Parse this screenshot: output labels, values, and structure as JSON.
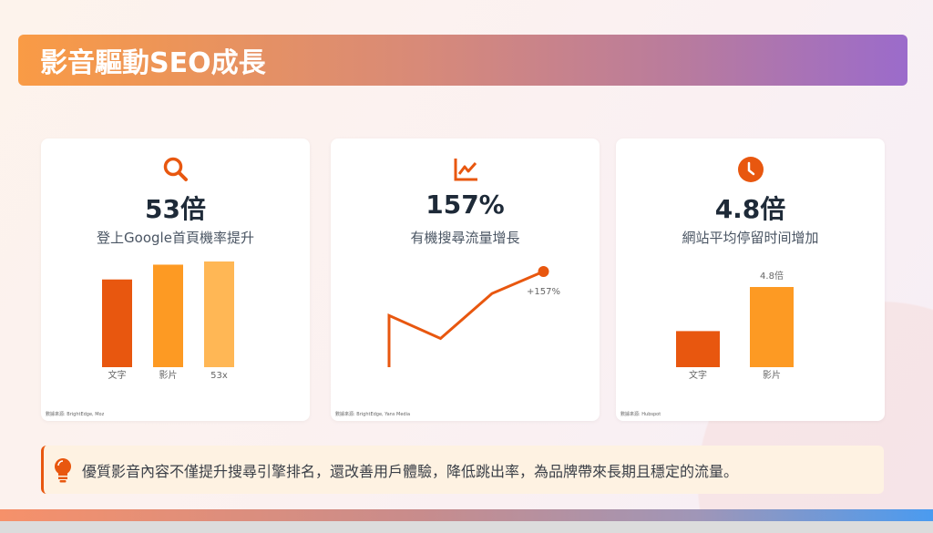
{
  "title": "影音驅動SEO成長",
  "colors": {
    "accent": "#e8570f",
    "orange": "#fd9a23",
    "light_orange": "#ffb755",
    "text": "#1e2a38"
  },
  "cards": [
    {
      "icon": "search-icon",
      "stat": "53倍",
      "desc": "登上Google首頁機率提升",
      "source": "數據來源: BrightEdge, Moz"
    },
    {
      "icon": "line-chart-icon",
      "stat": "157%",
      "desc": "有機搜尋流量增長",
      "source": "數據來源: BrightEdge, Yans Media"
    },
    {
      "icon": "clock-icon",
      "stat": "4.8倍",
      "desc": "網站平均停留时间增加",
      "source": "數據來源: Hubspot"
    }
  ],
  "chart_data": [
    {
      "type": "bar",
      "categories": [
        "文字",
        "影片",
        "53x"
      ],
      "values": [
        83,
        97,
        100
      ],
      "colors": [
        "#e8570f",
        "#fd9a23",
        "#ffb755"
      ]
    },
    {
      "type": "line",
      "values": [
        0,
        54,
        30,
        77,
        100
      ],
      "annotation": "+157%"
    },
    {
      "type": "bar",
      "categories": [
        "文字",
        "影片"
      ],
      "values": [
        45,
        100
      ],
      "data_labels": [
        "",
        "4.8倍"
      ],
      "colors": [
        "#e8570f",
        "#fd9a23"
      ]
    }
  ],
  "callout": {
    "icon": "lightbulb-icon",
    "text": "優質影音內容不僅提升搜尋引擎排名，還改善用戶體驗，降低跳出率，為品牌帶來長期且穩定的流量。"
  }
}
